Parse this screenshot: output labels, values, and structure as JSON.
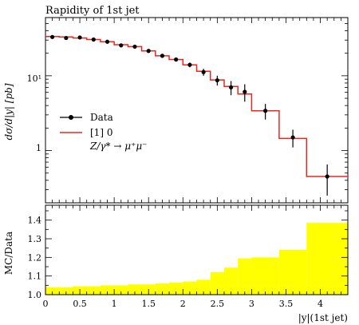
{
  "chart_data": [
    {
      "type": "line",
      "title": "Rapidity of 1st jet",
      "ylabel": "dσ/d|y| [pb]",
      "yscale": "log",
      "ylim": [
        0.2,
        60
      ],
      "xlim": [
        0,
        4.4
      ],
      "ytick_labels": [
        "1",
        "10¹"
      ],
      "legend": {
        "placement": "center-left",
        "entries": [
          "Data",
          "[1] 0",
          "Z/γ* → μ⁺μ⁻"
        ]
      },
      "series": [
        {
          "name": "Data",
          "style": "points-with-errors",
          "color": "#000000",
          "x": [
            0.1,
            0.3,
            0.5,
            0.7,
            0.9,
            1.1,
            1.3,
            1.5,
            1.7,
            1.9,
            2.1,
            2.3,
            2.5,
            2.7,
            2.9,
            3.2,
            3.6,
            4.1
          ],
          "y": [
            33.0,
            32.0,
            32.5,
            30.5,
            28.5,
            25.5,
            24.5,
            21.5,
            18.5,
            16.5,
            14.0,
            11.2,
            8.7,
            7.0,
            6.1,
            3.4,
            1.5,
            0.45
          ],
          "yerr": [
            1.0,
            1.0,
            1.0,
            1.0,
            1.0,
            1.0,
            1.0,
            1.2,
            1.0,
            1.0,
            1.0,
            1.2,
            1.3,
            1.5,
            1.6,
            0.8,
            0.4,
            0.2
          ]
        },
        {
          "name": "[1] 0",
          "style": "step",
          "color": "#e8281e",
          "bin_edges": [
            0,
            0.2,
            0.4,
            0.6,
            0.8,
            1.0,
            1.2,
            1.4,
            1.6,
            1.8,
            2.0,
            2.2,
            2.4,
            2.6,
            2.8,
            3.0,
            3.4,
            3.8,
            4.4
          ],
          "values": [
            33.5,
            33.0,
            32.0,
            30.5,
            28.5,
            26.0,
            24.5,
            21.5,
            18.5,
            16.5,
            14.0,
            11.5,
            8.8,
            7.2,
            5.7,
            3.4,
            1.45,
            0.45
          ]
        }
      ]
    },
    {
      "type": "bar",
      "ylabel": "MC/Data",
      "xlabel": "|y|(1st jet)",
      "ylim": [
        1.0,
        1.48
      ],
      "xlim": [
        0,
        4.4
      ],
      "x_tick_labels": [
        "0",
        "0.5",
        "1",
        "1.5",
        "2",
        "2.5",
        "3",
        "3.5",
        "4"
      ],
      "y_tick_labels": [
        "1.0",
        "1.1",
        "1.2",
        "1.3",
        "1.4"
      ],
      "fill_color": "#ffff00",
      "bin_edges": [
        0,
        0.2,
        0.4,
        0.6,
        0.8,
        1.0,
        1.2,
        1.4,
        1.6,
        1.8,
        2.0,
        2.2,
        2.4,
        2.6,
        2.8,
        3.0,
        3.4,
        3.8,
        4.4
      ],
      "values": [
        1.04,
        1.04,
        1.045,
        1.045,
        1.05,
        1.05,
        1.055,
        1.055,
        1.06,
        1.065,
        1.07,
        1.08,
        1.12,
        1.145,
        1.195,
        1.2,
        1.24,
        1.385
      ]
    }
  ]
}
